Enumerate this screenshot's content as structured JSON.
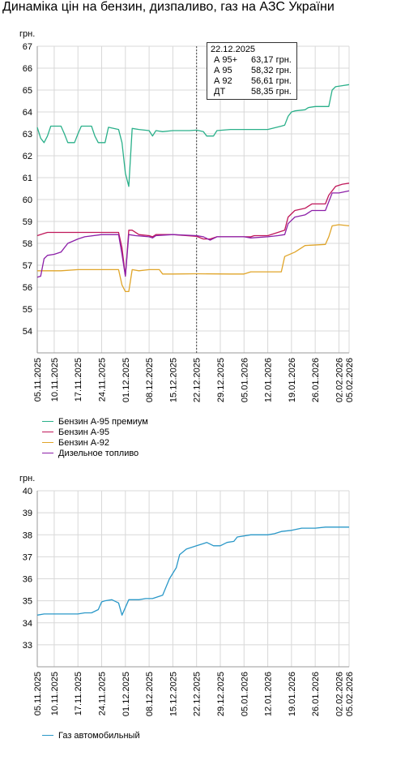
{
  "title": "Динаміка цін на бензин, дизпаливо, газ на АЗС України",
  "tooltip": {
    "date": "22.12.2025",
    "rows": [
      {
        "label": "А 95+",
        "value": "63,17 грн."
      },
      {
        "label": "А 95",
        "value": "58,32 грн."
      },
      {
        "label": "А 92",
        "value": "56,61 грн."
      },
      {
        "label": "ДТ",
        "value": "58,35 грн."
      }
    ]
  },
  "chart_data": [
    {
      "type": "line",
      "unit_label": "грн.",
      "ylim": [
        53,
        67
      ],
      "yticks": [
        54,
        55,
        56,
        57,
        58,
        59,
        60,
        61,
        62,
        63,
        64,
        65,
        66,
        67
      ],
      "xlim": [
        "2025-11-05",
        "2026-02-05"
      ],
      "xtick_labels": [
        "05.11.2025",
        "10.11.2025",
        "17.11.2025",
        "24.11.2025",
        "01.12.2025",
        "08.12.2025",
        "15.12.2025",
        "22.12.2025",
        "29.12.2025",
        "05.01.2026",
        "12.01.2026",
        "19.01.2026",
        "26.01.2026",
        "02.02.2026",
        "05.02.2026"
      ],
      "grid": true,
      "cursor_date": "22.12.2025",
      "legend_position": "bottom-left",
      "series": [
        {
          "name": "Бензин А-95 премиум",
          "color": "#2ab08a",
          "points": [
            [
              "2025-11-05",
              63.3
            ],
            [
              "2025-11-06",
              62.8
            ],
            [
              "2025-11-07",
              62.6
            ],
            [
              "2025-11-08",
              62.9
            ],
            [
              "2025-11-09",
              63.35
            ],
            [
              "2025-11-12",
              63.35
            ],
            [
              "2025-11-13",
              63.0
            ],
            [
              "2025-11-14",
              62.6
            ],
            [
              "2025-11-16",
              62.6
            ],
            [
              "2025-11-17",
              63.0
            ],
            [
              "2025-11-18",
              63.35
            ],
            [
              "2025-11-21",
              63.35
            ],
            [
              "2025-11-22",
              62.9
            ],
            [
              "2025-11-23",
              62.6
            ],
            [
              "2025-11-25",
              62.6
            ],
            [
              "2025-11-26",
              63.3
            ],
            [
              "2025-11-29",
              63.2
            ],
            [
              "2025-11-30",
              62.6
            ],
            [
              "2025-12-01",
              61.2
            ],
            [
              "2025-12-02",
              60.6
            ],
            [
              "2025-12-03",
              63.25
            ],
            [
              "2025-12-05",
              63.2
            ],
            [
              "2025-12-08",
              63.15
            ],
            [
              "2025-12-09",
              62.9
            ],
            [
              "2025-12-10",
              63.15
            ],
            [
              "2025-12-12",
              63.1
            ],
            [
              "2025-12-15",
              63.15
            ],
            [
              "2025-12-20",
              63.15
            ],
            [
              "2025-12-22",
              63.17
            ],
            [
              "2025-12-24",
              63.1
            ],
            [
              "2025-12-25",
              62.9
            ],
            [
              "2025-12-27",
              62.9
            ],
            [
              "2025-12-28",
              63.15
            ],
            [
              "2026-01-01",
              63.2
            ],
            [
              "2026-01-07",
              63.2
            ],
            [
              "2026-01-12",
              63.2
            ],
            [
              "2026-01-16",
              63.35
            ],
            [
              "2026-01-17",
              63.4
            ],
            [
              "2026-01-18",
              63.8
            ],
            [
              "2026-01-19",
              64.0
            ],
            [
              "2026-01-20",
              64.05
            ],
            [
              "2026-01-23",
              64.1
            ],
            [
              "2026-01-24",
              64.2
            ],
            [
              "2026-01-26",
              64.25
            ],
            [
              "2026-01-30",
              64.25
            ],
            [
              "2026-01-31",
              65.0
            ],
            [
              "2026-02-01",
              65.15
            ],
            [
              "2026-02-03",
              65.2
            ],
            [
              "2026-02-05",
              65.25
            ]
          ]
        },
        {
          "name": "Бензин А-95",
          "color": "#c0185a",
          "points": [
            [
              "2025-11-05",
              58.35
            ],
            [
              "2025-11-07",
              58.45
            ],
            [
              "2025-11-08",
              58.5
            ],
            [
              "2025-11-10",
              58.5
            ],
            [
              "2025-11-25",
              58.5
            ],
            [
              "2025-11-29",
              58.5
            ],
            [
              "2025-11-30",
              57.8
            ],
            [
              "2025-12-01",
              56.5
            ],
            [
              "2025-12-02",
              58.6
            ],
            [
              "2025-12-03",
              58.6
            ],
            [
              "2025-12-05",
              58.4
            ],
            [
              "2025-12-08",
              58.35
            ],
            [
              "2025-12-09",
              58.3
            ],
            [
              "2025-12-10",
              58.4
            ],
            [
              "2025-12-15",
              58.4
            ],
            [
              "2025-12-22",
              58.32
            ],
            [
              "2025-12-24",
              58.2
            ],
            [
              "2025-12-26",
              58.2
            ],
            [
              "2025-12-28",
              58.3
            ],
            [
              "2026-01-01",
              58.3
            ],
            [
              "2026-01-07",
              58.3
            ],
            [
              "2026-01-08",
              58.35
            ],
            [
              "2026-01-12",
              58.35
            ],
            [
              "2026-01-15",
              58.5
            ],
            [
              "2026-01-17",
              58.6
            ],
            [
              "2026-01-18",
              59.2
            ],
            [
              "2026-01-20",
              59.5
            ],
            [
              "2026-01-23",
              59.6
            ],
            [
              "2026-01-25",
              59.8
            ],
            [
              "2026-01-29",
              59.8
            ],
            [
              "2026-01-30",
              60.2
            ],
            [
              "2026-02-01",
              60.6
            ],
            [
              "2026-02-03",
              60.7
            ],
            [
              "2026-02-05",
              60.75
            ]
          ]
        },
        {
          "name": "Бензин А-92",
          "color": "#e0a52a",
          "points": [
            [
              "2025-11-05",
              56.75
            ],
            [
              "2025-11-10",
              56.75
            ],
            [
              "2025-11-12",
              56.75
            ],
            [
              "2025-11-17",
              56.8
            ],
            [
              "2025-11-29",
              56.8
            ],
            [
              "2025-11-30",
              56.1
            ],
            [
              "2025-12-01",
              55.8
            ],
            [
              "2025-12-02",
              55.8
            ],
            [
              "2025-12-03",
              56.8
            ],
            [
              "2025-12-05",
              56.75
            ],
            [
              "2025-12-08",
              56.8
            ],
            [
              "2025-12-11",
              56.8
            ],
            [
              "2025-12-12",
              56.6
            ],
            [
              "2025-12-15",
              56.6
            ],
            [
              "2025-12-22",
              56.61
            ],
            [
              "2026-01-01",
              56.6
            ],
            [
              "2026-01-05",
              56.6
            ],
            [
              "2026-01-07",
              56.7
            ],
            [
              "2026-01-12",
              56.7
            ],
            [
              "2026-01-16",
              56.7
            ],
            [
              "2026-01-17",
              57.4
            ],
            [
              "2026-01-20",
              57.6
            ],
            [
              "2026-01-22",
              57.8
            ],
            [
              "2026-01-23",
              57.9
            ],
            [
              "2026-01-29",
              57.95
            ],
            [
              "2026-01-30",
              58.3
            ],
            [
              "2026-01-31",
              58.8
            ],
            [
              "2026-02-02",
              58.85
            ],
            [
              "2026-02-05",
              58.8
            ]
          ]
        },
        {
          "name": "Дизельное топливо",
          "color": "#8c1fa8",
          "points": [
            [
              "2025-11-05",
              56.45
            ],
            [
              "2025-11-06",
              56.5
            ],
            [
              "2025-11-07",
              57.3
            ],
            [
              "2025-11-08",
              57.45
            ],
            [
              "2025-11-10",
              57.5
            ],
            [
              "2025-11-12",
              57.6
            ],
            [
              "2025-11-14",
              58.0
            ],
            [
              "2025-11-17",
              58.2
            ],
            [
              "2025-11-19",
              58.3
            ],
            [
              "2025-11-24",
              58.4
            ],
            [
              "2025-11-29",
              58.4
            ],
            [
              "2025-11-30",
              57.5
            ],
            [
              "2025-12-01",
              56.5
            ],
            [
              "2025-12-02",
              58.4
            ],
            [
              "2025-12-04",
              58.35
            ],
            [
              "2025-12-08",
              58.3
            ],
            [
              "2025-12-09",
              58.25
            ],
            [
              "2025-12-10",
              58.35
            ],
            [
              "2025-12-15",
              58.4
            ],
            [
              "2025-12-22",
              58.35
            ],
            [
              "2025-12-24",
              58.3
            ],
            [
              "2025-12-26",
              58.15
            ],
            [
              "2025-12-28",
              58.3
            ],
            [
              "2026-01-01",
              58.3
            ],
            [
              "2026-01-05",
              58.3
            ],
            [
              "2026-01-07",
              58.25
            ],
            [
              "2026-01-12",
              58.3
            ],
            [
              "2026-01-15",
              58.35
            ],
            [
              "2026-01-17",
              58.4
            ],
            [
              "2026-01-18",
              58.9
            ],
            [
              "2026-01-20",
              59.2
            ],
            [
              "2026-01-23",
              59.3
            ],
            [
              "2026-01-25",
              59.5
            ],
            [
              "2026-01-29",
              59.5
            ],
            [
              "2026-01-31",
              60.3
            ],
            [
              "2026-02-02",
              60.3
            ],
            [
              "2026-02-05",
              60.4
            ]
          ]
        }
      ]
    },
    {
      "type": "line",
      "unit_label": "грн.",
      "ylim": [
        32,
        40
      ],
      "yticks": [
        33,
        34,
        35,
        36,
        37,
        38,
        39,
        40
      ],
      "xlim": [
        "2025-11-05",
        "2026-02-05"
      ],
      "xtick_labels": [
        "05.11.2025",
        "10.11.2025",
        "17.11.2025",
        "24.11.2025",
        "01.12.2025",
        "08.12.2025",
        "15.12.2025",
        "22.12.2025",
        "29.12.2025",
        "05.01.2026",
        "12.01.2026",
        "19.01.2026",
        "26.01.2026",
        "02.02.2026",
        "05.02.2026"
      ],
      "grid": true,
      "legend_position": "bottom-left",
      "series": [
        {
          "name": "Газ автомобильный",
          "color": "#2a98c8",
          "points": [
            [
              "2025-11-05",
              34.35
            ],
            [
              "2025-11-07",
              34.4
            ],
            [
              "2025-11-10",
              34.4
            ],
            [
              "2025-11-17",
              34.4
            ],
            [
              "2025-11-19",
              34.45
            ],
            [
              "2025-11-21",
              34.45
            ],
            [
              "2025-11-23",
              34.6
            ],
            [
              "2025-11-24",
              34.95
            ],
            [
              "2025-11-25",
              35.0
            ],
            [
              "2025-11-27",
              35.05
            ],
            [
              "2025-11-29",
              34.9
            ],
            [
              "2025-11-30",
              34.35
            ],
            [
              "2025-12-02",
              35.05
            ],
            [
              "2025-12-05",
              35.05
            ],
            [
              "2025-12-07",
              35.1
            ],
            [
              "2025-12-09",
              35.1
            ],
            [
              "2025-12-12",
              35.25
            ],
            [
              "2025-12-14",
              36.0
            ],
            [
              "2025-12-16",
              36.5
            ],
            [
              "2025-12-17",
              37.1
            ],
            [
              "2025-12-19",
              37.35
            ],
            [
              "2025-12-22",
              37.5
            ],
            [
              "2025-12-24",
              37.6
            ],
            [
              "2025-12-25",
              37.65
            ],
            [
              "2025-12-27",
              37.5
            ],
            [
              "2025-12-29",
              37.5
            ],
            [
              "2025-12-31",
              37.65
            ],
            [
              "2026-01-02",
              37.7
            ],
            [
              "2026-01-03",
              37.9
            ],
            [
              "2026-01-07",
              38.0
            ],
            [
              "2026-01-12",
              38.0
            ],
            [
              "2026-01-14",
              38.05
            ],
            [
              "2026-01-16",
              38.15
            ],
            [
              "2026-01-19",
              38.2
            ],
            [
              "2026-01-22",
              38.3
            ],
            [
              "2026-01-26",
              38.3
            ],
            [
              "2026-01-29",
              38.35
            ],
            [
              "2026-02-05",
              38.35
            ]
          ]
        }
      ]
    }
  ]
}
